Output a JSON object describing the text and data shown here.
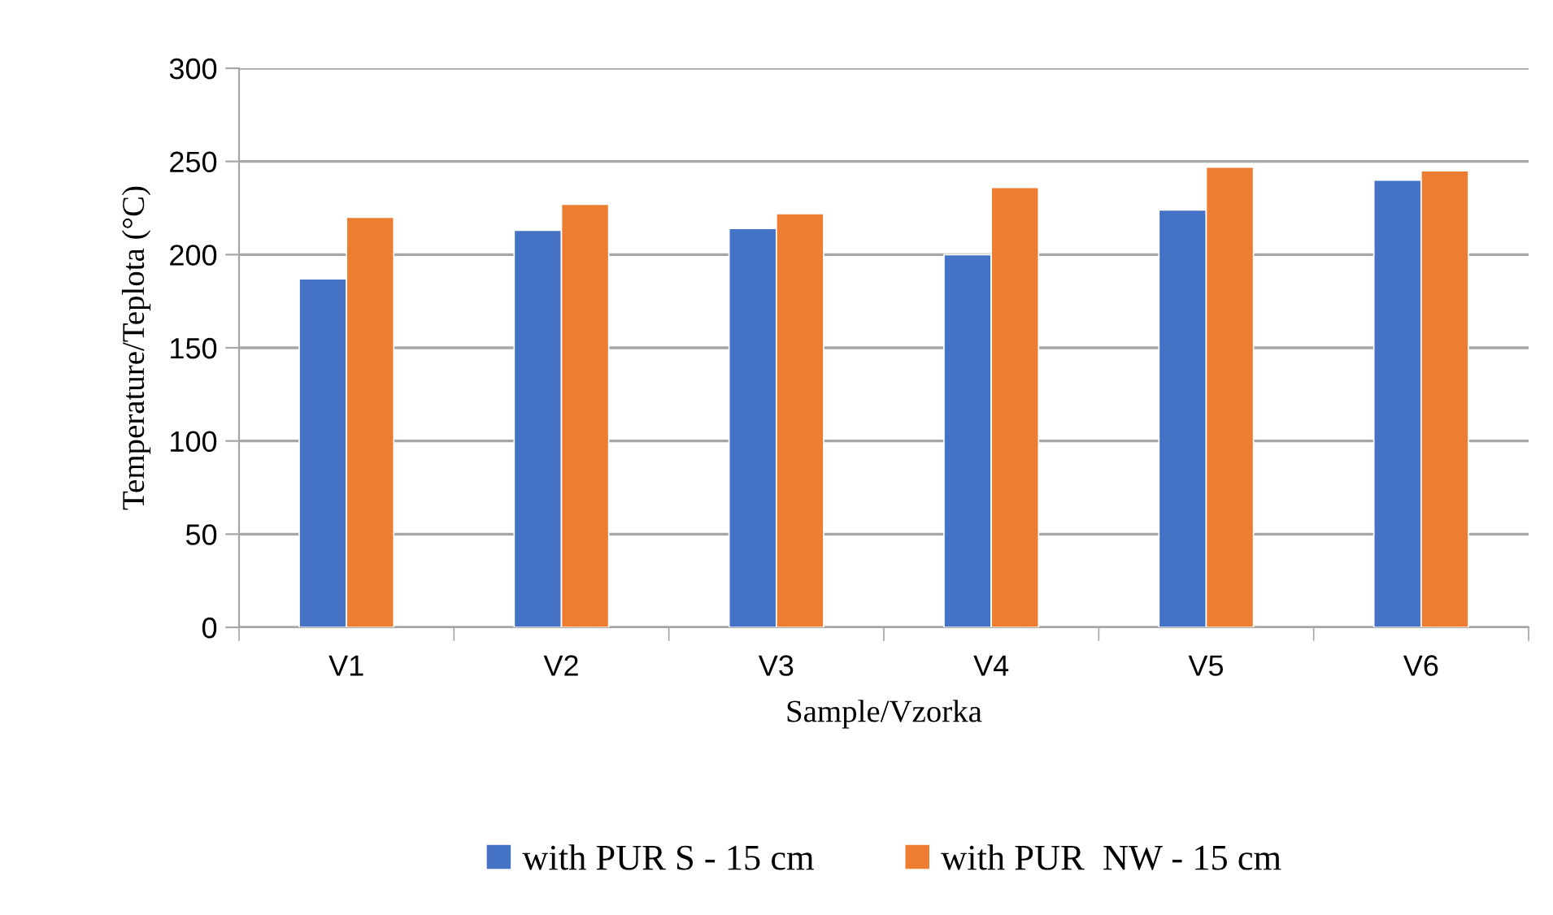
{
  "chart_data": {
    "type": "bar",
    "xlabel": "Sample/Vzorka",
    "ylabel": "Temperature/Teplota (°C)",
    "categories": [
      "V1",
      "V2",
      "V3",
      "V4",
      "V5",
      "V6"
    ],
    "series": [
      {
        "name": "with PUR S - 15 cm",
        "color": "#4472c4",
        "values": [
          187,
          213,
          214,
          200,
          224,
          240
        ]
      },
      {
        "name": "with PUR  NW - 15 cm",
        "color": "#ed7d31",
        "values": [
          220,
          227,
          222,
          236,
          247,
          245
        ]
      }
    ],
    "ylim": [
      0,
      300
    ],
    "yticks": [
      0,
      50,
      100,
      150,
      200,
      250,
      300
    ],
    "grid": "y",
    "legend": "bottom"
  }
}
